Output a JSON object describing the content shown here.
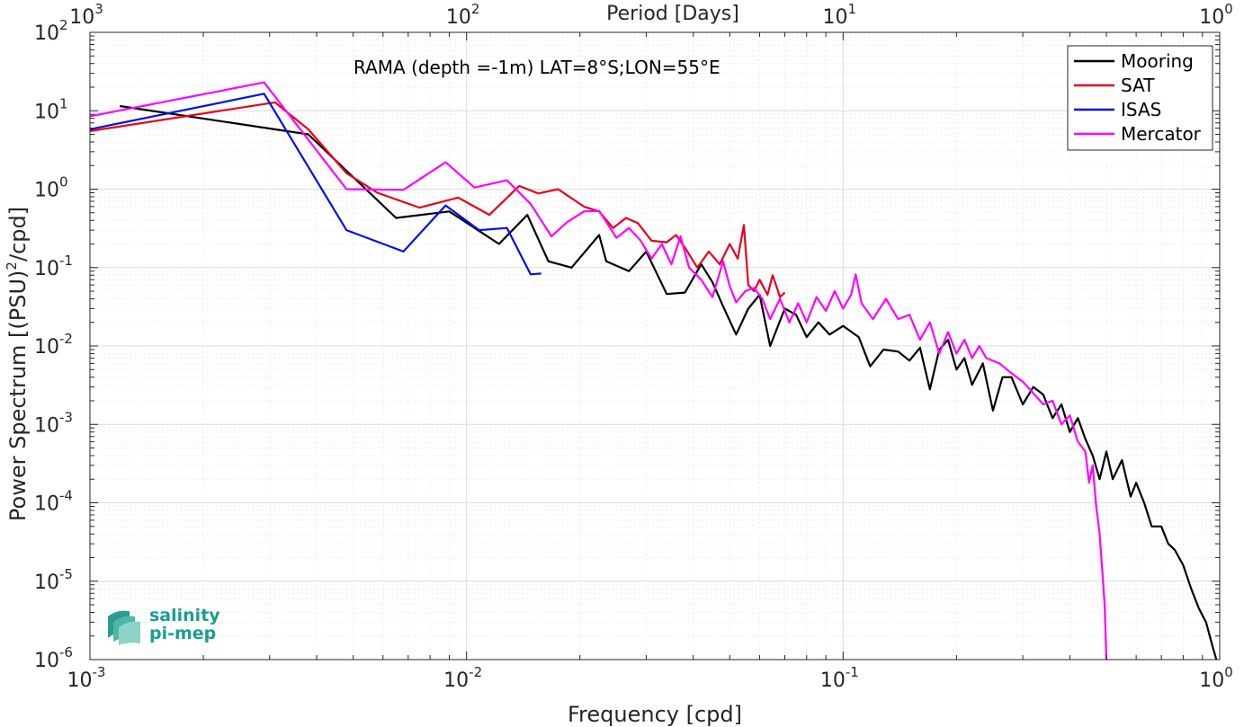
{
  "chart_data": {
    "type": "line",
    "title": "RAMA (depth =-1m) LAT=8°S;LON=55°E",
    "xlabel": "Frequency [cpd]",
    "ylabel": "Power Spectrum [(PSU)²/cpd]",
    "ylabel_parts": {
      "before": "Power Spectrum [(PSU)",
      "sup": "2",
      "after": "/cpd]"
    },
    "top_xlabel": "Period [Days]",
    "xscale": "log",
    "yscale": "log",
    "xlim": [
      0.001,
      1
    ],
    "ylim": [
      1e-06,
      100
    ],
    "grid": true,
    "minor_grid": true,
    "legend_position": "top-right",
    "x_ticks": [
      {
        "value": 0.001,
        "base": "10",
        "exp": "-3"
      },
      {
        "value": 0.01,
        "base": "10",
        "exp": "-2"
      },
      {
        "value": 0.1,
        "base": "10",
        "exp": "-1"
      },
      {
        "value": 1,
        "base": "10",
        "exp": "0"
      }
    ],
    "top_x_ticks": [
      {
        "value": 0.001,
        "base": "10",
        "exp": "3"
      },
      {
        "value": 0.01,
        "base": "10",
        "exp": "2"
      },
      {
        "value": 0.1,
        "base": "10",
        "exp": "1"
      },
      {
        "value": 1,
        "base": "10",
        "exp": "0"
      }
    ],
    "y_ticks": [
      {
        "value": 1e-06,
        "base": "10",
        "exp": "-6"
      },
      {
        "value": 1e-05,
        "base": "10",
        "exp": "-5"
      },
      {
        "value": 0.0001,
        "base": "10",
        "exp": "-4"
      },
      {
        "value": 0.001,
        "base": "10",
        "exp": "-3"
      },
      {
        "value": 0.01,
        "base": "10",
        "exp": "-2"
      },
      {
        "value": 0.1,
        "base": "10",
        "exp": "-1"
      },
      {
        "value": 1,
        "base": "10",
        "exp": "0"
      },
      {
        "value": 10,
        "base": "10",
        "exp": "1"
      },
      {
        "value": 100,
        "base": "10",
        "exp": "2"
      }
    ],
    "series": [
      {
        "name": "Mooring",
        "color": "#000000",
        "points": [
          [
            0.0012,
            11.5
          ],
          [
            0.0038,
            5.0
          ],
          [
            0.0065,
            0.43
          ],
          [
            0.009,
            0.52
          ],
          [
            0.0122,
            0.2
          ],
          [
            0.0145,
            0.47
          ],
          [
            0.0165,
            0.12
          ],
          [
            0.019,
            0.1
          ],
          [
            0.0225,
            0.26
          ],
          [
            0.0235,
            0.12
          ],
          [
            0.027,
            0.09
          ],
          [
            0.03,
            0.16
          ],
          [
            0.034,
            0.046
          ],
          [
            0.038,
            0.048
          ],
          [
            0.042,
            0.11
          ],
          [
            0.045,
            0.065
          ],
          [
            0.048,
            0.032
          ],
          [
            0.052,
            0.014
          ],
          [
            0.056,
            0.03
          ],
          [
            0.06,
            0.045
          ],
          [
            0.064,
            0.01
          ],
          [
            0.07,
            0.03
          ],
          [
            0.075,
            0.025
          ],
          [
            0.08,
            0.013
          ],
          [
            0.086,
            0.02
          ],
          [
            0.092,
            0.014
          ],
          [
            0.1,
            0.018
          ],
          [
            0.11,
            0.013
          ],
          [
            0.118,
            0.0055
          ],
          [
            0.128,
            0.009
          ],
          [
            0.14,
            0.0085
          ],
          [
            0.15,
            0.0065
          ],
          [
            0.16,
            0.0095
          ],
          [
            0.17,
            0.0028
          ],
          [
            0.18,
            0.009
          ],
          [
            0.19,
            0.012
          ],
          [
            0.2,
            0.005
          ],
          [
            0.21,
            0.007
          ],
          [
            0.22,
            0.0032
          ],
          [
            0.235,
            0.006
          ],
          [
            0.25,
            0.0015
          ],
          [
            0.265,
            0.004
          ],
          [
            0.28,
            0.004
          ],
          [
            0.3,
            0.0018
          ],
          [
            0.32,
            0.003
          ],
          [
            0.34,
            0.0024
          ],
          [
            0.36,
            0.0012
          ],
          [
            0.38,
            0.0018
          ],
          [
            0.4,
            0.0008
          ],
          [
            0.42,
            0.0012
          ],
          [
            0.44,
            0.00065
          ],
          [
            0.46,
            0.0004
          ],
          [
            0.48,
            0.0002
          ],
          [
            0.5,
            0.00045
          ],
          [
            0.52,
            0.0002
          ],
          [
            0.55,
            0.00035
          ],
          [
            0.58,
            0.00012
          ],
          [
            0.6,
            0.00018
          ],
          [
            0.63,
            0.0001
          ],
          [
            0.66,
            5e-05
          ],
          [
            0.7,
            5e-05
          ],
          [
            0.73,
            3e-05
          ],
          [
            0.76,
            2.5e-05
          ],
          [
            0.8,
            1.6e-05
          ],
          [
            0.84,
            8e-06
          ],
          [
            0.88,
            4.5e-06
          ],
          [
            0.92,
            3e-06
          ],
          [
            0.96,
            1.4e-06
          ],
          [
            0.98,
            1e-06
          ]
        ]
      },
      {
        "name": "SAT",
        "color": "#e8001c",
        "points": [
          [
            0.001,
            5.5
          ],
          [
            0.0031,
            12.8
          ],
          [
            0.0038,
            5.8
          ],
          [
            0.0048,
            1.6
          ],
          [
            0.0058,
            0.9
          ],
          [
            0.0075,
            0.58
          ],
          [
            0.0095,
            0.78
          ],
          [
            0.0115,
            0.47
          ],
          [
            0.0138,
            1.1
          ],
          [
            0.0155,
            0.88
          ],
          [
            0.0175,
            1.0
          ],
          [
            0.0205,
            0.6
          ],
          [
            0.0225,
            0.52
          ],
          [
            0.0245,
            0.32
          ],
          [
            0.0265,
            0.43
          ],
          [
            0.0285,
            0.37
          ],
          [
            0.031,
            0.22
          ],
          [
            0.034,
            0.21
          ],
          [
            0.036,
            0.26
          ],
          [
            0.038,
            0.18
          ],
          [
            0.041,
            0.1
          ],
          [
            0.044,
            0.16
          ],
          [
            0.047,
            0.11
          ],
          [
            0.05,
            0.2
          ],
          [
            0.0525,
            0.13
          ],
          [
            0.0545,
            0.35
          ],
          [
            0.056,
            0.06
          ],
          [
            0.058,
            0.05
          ],
          [
            0.06,
            0.07
          ],
          [
            0.063,
            0.045
          ],
          [
            0.065,
            0.08
          ],
          [
            0.068,
            0.042
          ],
          [
            0.07,
            0.048
          ]
        ]
      },
      {
        "name": "ISAS",
        "color": "#0010e8",
        "points": [
          [
            0.001,
            5.8
          ],
          [
            0.0029,
            16.5
          ],
          [
            0.0048,
            0.3
          ],
          [
            0.0068,
            0.16
          ],
          [
            0.0088,
            0.62
          ],
          [
            0.0108,
            0.3
          ],
          [
            0.0128,
            0.32
          ],
          [
            0.0148,
            0.082
          ],
          [
            0.0158,
            0.084
          ]
        ]
      },
      {
        "name": "Mercator",
        "color": "#ff00ff",
        "points": [
          [
            0.001,
            8.5
          ],
          [
            0.0029,
            23
          ],
          [
            0.0048,
            1.0
          ],
          [
            0.0068,
            0.98
          ],
          [
            0.0088,
            2.2
          ],
          [
            0.0105,
            1.05
          ],
          [
            0.0128,
            1.3
          ],
          [
            0.0148,
            0.65
          ],
          [
            0.0168,
            0.25
          ],
          [
            0.0185,
            0.38
          ],
          [
            0.0205,
            0.52
          ],
          [
            0.0225,
            0.53
          ],
          [
            0.025,
            0.24
          ],
          [
            0.027,
            0.32
          ],
          [
            0.029,
            0.22
          ],
          [
            0.031,
            0.13
          ],
          [
            0.033,
            0.2
          ],
          [
            0.035,
            0.11
          ],
          [
            0.037,
            0.25
          ],
          [
            0.039,
            0.1
          ],
          [
            0.042,
            0.07
          ],
          [
            0.045,
            0.042
          ],
          [
            0.048,
            0.12
          ],
          [
            0.05,
            0.058
          ],
          [
            0.052,
            0.036
          ],
          [
            0.055,
            0.05
          ],
          [
            0.058,
            0.055
          ],
          [
            0.061,
            0.04
          ],
          [
            0.064,
            0.022
          ],
          [
            0.068,
            0.04
          ],
          [
            0.072,
            0.02
          ],
          [
            0.076,
            0.035
          ],
          [
            0.08,
            0.02
          ],
          [
            0.085,
            0.042
          ],
          [
            0.09,
            0.028
          ],
          [
            0.095,
            0.05
          ],
          [
            0.1,
            0.03
          ],
          [
            0.105,
            0.045
          ],
          [
            0.108,
            0.082
          ],
          [
            0.112,
            0.035
          ],
          [
            0.12,
            0.022
          ],
          [
            0.13,
            0.04
          ],
          [
            0.14,
            0.022
          ],
          [
            0.15,
            0.025
          ],
          [
            0.16,
            0.012
          ],
          [
            0.17,
            0.02
          ],
          [
            0.18,
            0.008
          ],
          [
            0.19,
            0.015
          ],
          [
            0.2,
            0.008
          ],
          [
            0.21,
            0.012
          ],
          [
            0.22,
            0.007
          ],
          [
            0.23,
            0.01
          ],
          [
            0.24,
            0.007
          ],
          [
            0.26,
            0.006
          ],
          [
            0.28,
            0.0045
          ],
          [
            0.3,
            0.0035
          ],
          [
            0.32,
            0.0025
          ],
          [
            0.34,
            0.0018
          ],
          [
            0.36,
            0.002
          ],
          [
            0.38,
            0.001
          ],
          [
            0.4,
            0.0013
          ],
          [
            0.42,
            0.0006
          ],
          [
            0.44,
            0.00045
          ],
          [
            0.45,
            0.00018
          ],
          [
            0.46,
            0.0003
          ],
          [
            0.47,
            9e-05
          ],
          [
            0.48,
            4e-05
          ],
          [
            0.49,
            1e-05
          ],
          [
            0.495,
            5e-06
          ],
          [
            0.5,
            1e-06
          ]
        ]
      }
    ],
    "logo": {
      "line1": "salinity",
      "line2": "pi-mep"
    }
  }
}
